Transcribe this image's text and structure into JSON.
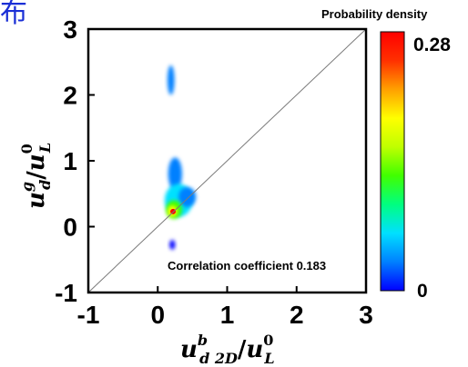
{
  "corner_text": "布",
  "chart_data": {
    "type": "heatmap",
    "xlim": [
      -1,
      3
    ],
    "ylim": [
      -1,
      3
    ],
    "x_ticks": [
      "-1",
      "0",
      "1",
      "2",
      "3"
    ],
    "y_ticks": [
      "-1",
      "0",
      "1",
      "2",
      "3"
    ],
    "x_tick_values": [
      -1,
      0,
      1,
      2,
      3
    ],
    "y_tick_values": [
      -1,
      0,
      1,
      2,
      3
    ],
    "xlabel": {
      "base": "u",
      "sup": "b",
      "sub": "d 2D",
      "sep": "/",
      "base2": "u",
      "sup2": "0",
      "sub2": "L"
    },
    "ylabel": {
      "base": "u",
      "sup": "g",
      "sub": "d",
      "sep": "/",
      "base2": "u",
      "sup2": "0",
      "sub2": "L"
    },
    "annotation": "Correlation coefficient 0.183",
    "reference_line": {
      "from": [
        -1,
        -1
      ],
      "to": [
        3,
        3
      ],
      "color": "#7a7a7a"
    },
    "colorbar": {
      "title": "Probability density",
      "min_label": "0",
      "max_label": "0.28",
      "min": 0,
      "max": 0.28,
      "stops": [
        "#0000ff",
        "#0080ff",
        "#00e0ff",
        "#00ff80",
        "#40ff00",
        "#c0ff00",
        "#ffff00",
        "#ffa000",
        "#ff3000",
        "#ff0000"
      ]
    },
    "density_regions": [
      {
        "x": [
          0.14,
          0.24
        ],
        "y": [
          2.0,
          2.45
        ],
        "density": 0.02
      },
      {
        "x": [
          0.15,
          0.35
        ],
        "y": [
          0.55,
          1.05
        ],
        "density": 0.025
      },
      {
        "x": [
          0.1,
          0.5
        ],
        "y": [
          0.15,
          0.65
        ],
        "density": 0.05
      },
      {
        "x": [
          0.3,
          0.55
        ],
        "y": [
          0.3,
          0.6
        ],
        "density": 0.03
      },
      {
        "x": [
          0.12,
          0.35
        ],
        "y": [
          0.12,
          0.4
        ],
        "density": 0.12
      },
      {
        "x": [
          0.14,
          0.28
        ],
        "y": [
          0.15,
          0.32
        ],
        "density": 0.2
      },
      {
        "x": [
          0.17,
          0.25
        ],
        "y": [
          -0.35,
          -0.2
        ],
        "density": 0.015
      }
    ],
    "peak": {
      "x": 0.22,
      "y": 0.23,
      "density": 0.28
    },
    "grid": false
  }
}
